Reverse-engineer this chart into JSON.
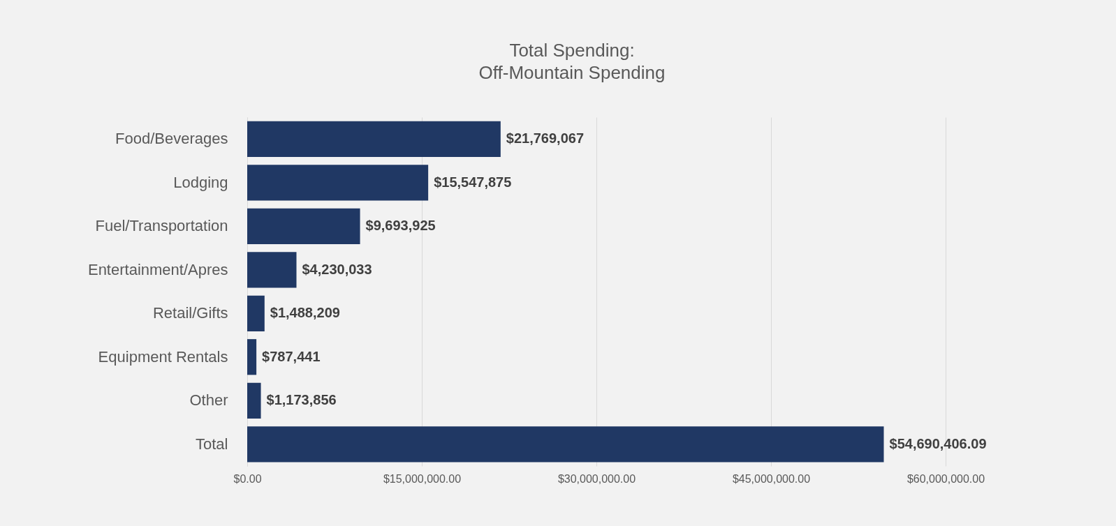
{
  "chart_data": {
    "type": "bar",
    "orientation": "horizontal",
    "title": "Total Spending:",
    "subtitle": "Off-Mountain Spending",
    "categories": [
      "Food/Beverages",
      "Lodging",
      "Fuel/Transportation",
      "Entertainment/Apres",
      "Retail/Gifts",
      "Equipment Rentals",
      "Other",
      "Total"
    ],
    "values": [
      21769067,
      15547875,
      9693925,
      4230033,
      1488209,
      787441,
      1173856,
      54690406.09
    ],
    "value_labels": [
      "$21,769,067",
      "$15,547,875",
      "$9,693,925",
      "$4,230,033",
      "$1,488,209",
      "$787,441",
      "$1,173,856",
      "$54,690,406.09"
    ],
    "color": "#203864",
    "xlim": [
      0,
      60000000
    ],
    "xticks": [
      {
        "value": 0,
        "label": "$0.00"
      },
      {
        "value": 15000000,
        "label": "$15,000,000.00"
      },
      {
        "value": 30000000,
        "label": "$30,000,000.00"
      },
      {
        "value": 45000000,
        "label": "$45,000,000.00"
      },
      {
        "value": 60000000,
        "label": "$60,000,000.00"
      }
    ],
    "grid": "x"
  }
}
